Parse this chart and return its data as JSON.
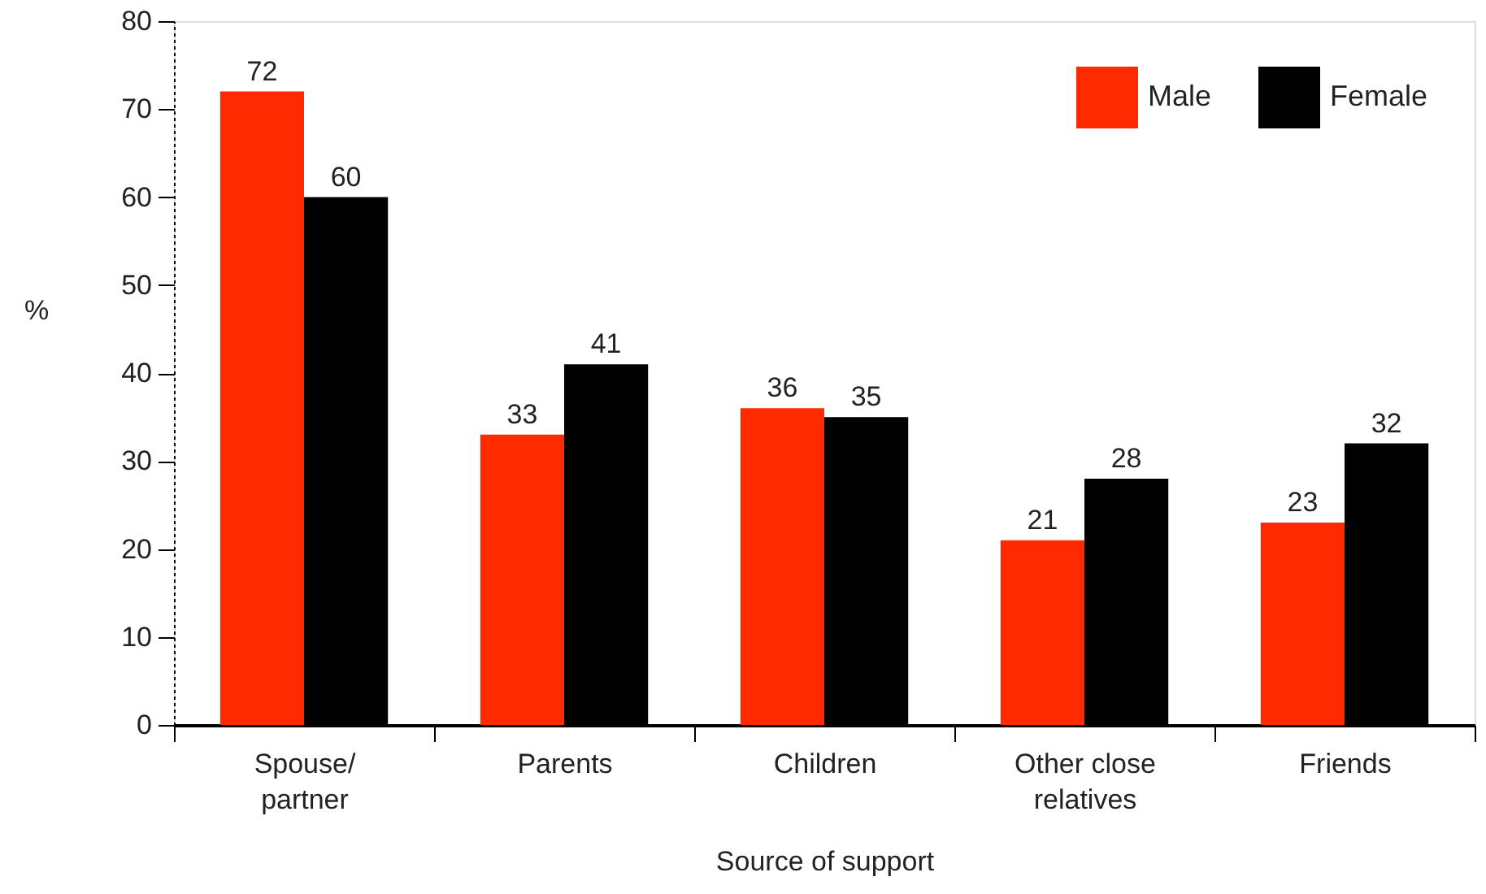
{
  "chart_data": {
    "type": "bar",
    "xlabel": "Source of support",
    "ylabel": "%",
    "categories": [
      "Spouse/partner",
      "Parents",
      "Children",
      "Other close relatives",
      "Friends"
    ],
    "series": [
      {
        "name": "Male",
        "color": "#ff2a00",
        "values": [
          72,
          33,
          36,
          21,
          23
        ]
      },
      {
        "name": "Female",
        "color": "#000000",
        "values": [
          60,
          41,
          35,
          28,
          32
        ]
      }
    ],
    "ylim": [
      0,
      80
    ],
    "yticks": [
      0,
      10,
      20,
      30,
      40,
      50,
      60,
      70,
      80
    ],
    "legend": "top right",
    "data_labels": true
  }
}
